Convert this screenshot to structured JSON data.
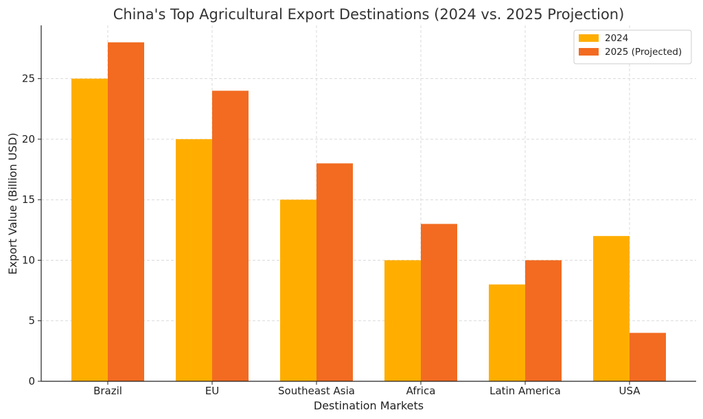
{
  "chart_data": {
    "type": "bar",
    "title": "China's Top Agricultural Export Destinations (2024 vs. 2025 Projection)",
    "xlabel": "Destination Markets",
    "ylabel": "Export Value (Billion USD)",
    "categories": [
      "Brazil",
      "EU",
      "Southeast Asia",
      "Africa",
      "Latin America",
      "USA"
    ],
    "series": [
      {
        "name": "2024",
        "color": "#FFAE00",
        "values": [
          25,
          20,
          15,
          10,
          8,
          12
        ]
      },
      {
        "name": "2025 (Projected)",
        "color": "#F26B21",
        "values": [
          28,
          24,
          18,
          13,
          10,
          4
        ]
      }
    ],
    "ylim": [
      0,
      29.4
    ],
    "yticks": [
      0,
      5,
      10,
      15,
      20,
      25
    ],
    "grid": true,
    "legend_position": "top-right"
  }
}
